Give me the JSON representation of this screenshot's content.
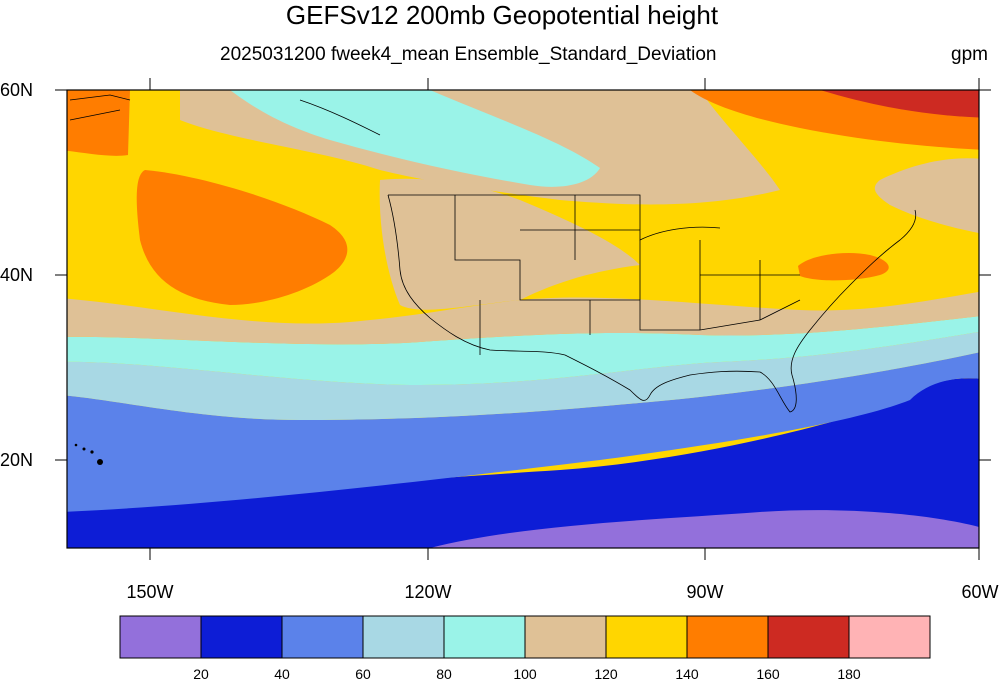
{
  "title": "GEFSv12 200mb Geopotential height",
  "subtitle": "2025031200 fweek4_mean Ensemble_Standard_Deviation",
  "units": "gpm",
  "lat_labels": [
    "60N",
    "40N",
    "20N"
  ],
  "lon_labels": [
    "150W",
    "120W",
    "90W",
    "60W"
  ],
  "colorbar": {
    "labels": [
      "20",
      "40",
      "60",
      "80",
      "100",
      "120",
      "140",
      "160",
      "180"
    ],
    "colors": [
      "#9370db",
      "#0d1dd6",
      "#5b82ea",
      "#a8d8e4",
      "#9af3e8",
      "#dfc196",
      "#ffd600",
      "#ff7d00",
      "#cd2a22",
      "#ffb3b5"
    ]
  },
  "map": {
    "extent": {
      "lon": [
        -160,
        -60
      ],
      "lat": [
        10,
        60
      ]
    },
    "ocean_color": "#ffffff"
  }
}
